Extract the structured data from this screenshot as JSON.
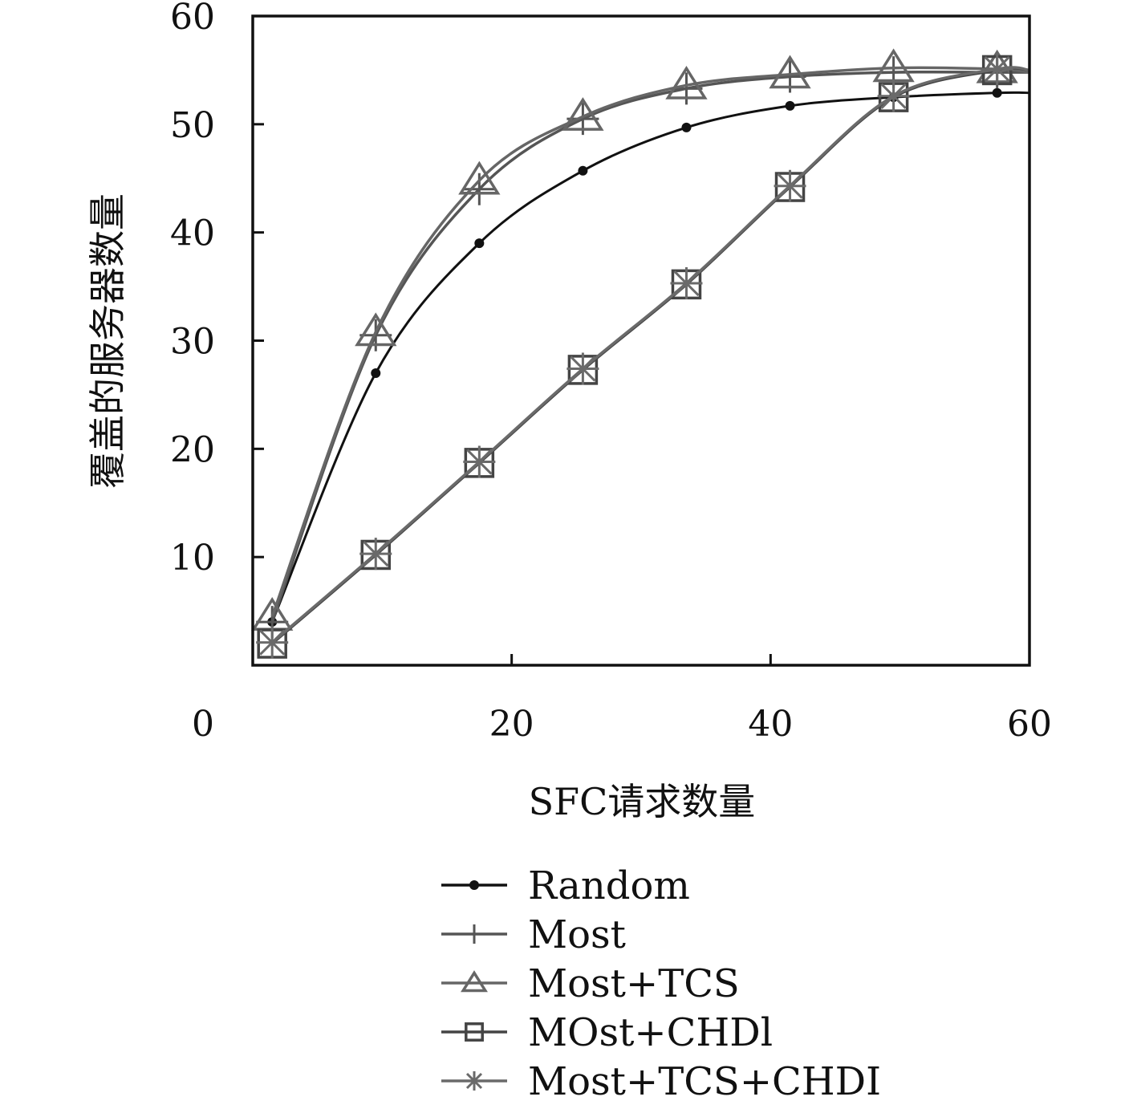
{
  "chart_data": {
    "type": "line",
    "title": "",
    "xlabel": "SFC请求数量",
    "ylabel": "覆盖的服务器数量",
    "xlim": [
      0,
      60
    ],
    "ylim": [
      0,
      60
    ],
    "x_ticks": [
      0,
      20,
      40,
      60
    ],
    "x_tick_labels": [
      "0",
      "20",
      "40",
      "60"
    ],
    "y_ticks": [
      10,
      20,
      30,
      40,
      50,
      60
    ],
    "y_tick_labels": [
      "10",
      "20",
      "30",
      "40",
      "50",
      "60"
    ],
    "grid": false,
    "legend_position": "bottom",
    "series": [
      {
        "name": "Random",
        "marker": "dot",
        "color": "#111111",
        "x": [
          1.5,
          9.5,
          17.5,
          25.5,
          33.5,
          41.5,
          49.5,
          57.5,
          60
        ],
        "y": [
          4,
          27,
          39,
          45.7,
          49.7,
          51.7,
          52.5,
          52.9,
          52.9
        ]
      },
      {
        "name": "Most",
        "marker": "plus",
        "color": "#555555",
        "x": [
          1.5,
          9.5,
          17.5,
          25.5,
          33.5,
          41.5,
          49.5,
          57.5,
          60
        ],
        "y": [
          4,
          30.5,
          44,
          50.5,
          53.3,
          54.4,
          54.8,
          54.8,
          54.8
        ]
      },
      {
        "name": "Most+TCS",
        "marker": "triangle",
        "color": "#666666",
        "x": [
          1.5,
          9.5,
          17.5,
          25.5,
          33.5,
          41.5,
          49.5,
          57.5,
          60
        ],
        "y": [
          4.5,
          30.8,
          44.8,
          50.7,
          53.6,
          54.6,
          55.2,
          55.1,
          54.8
        ]
      },
      {
        "name": "MOst+CHDl",
        "marker": "square",
        "color": "#444444",
        "x": [
          1.5,
          9.5,
          17.5,
          25.5,
          33.5,
          41.5,
          49.5,
          57.5,
          60
        ],
        "y": [
          2,
          10.2,
          18.7,
          27.3,
          35.2,
          44.2,
          52.5,
          55,
          55
        ]
      },
      {
        "name": "Most+TCS+CHDI",
        "marker": "star",
        "color": "#6a6a6a",
        "x": [
          1.5,
          9.5,
          17.5,
          25.5,
          33.5,
          41.5,
          49.5,
          57.5,
          60
        ],
        "y": [
          2.1,
          10.3,
          18.8,
          27.4,
          35.3,
          44.3,
          52.6,
          55.1,
          55
        ]
      }
    ]
  }
}
